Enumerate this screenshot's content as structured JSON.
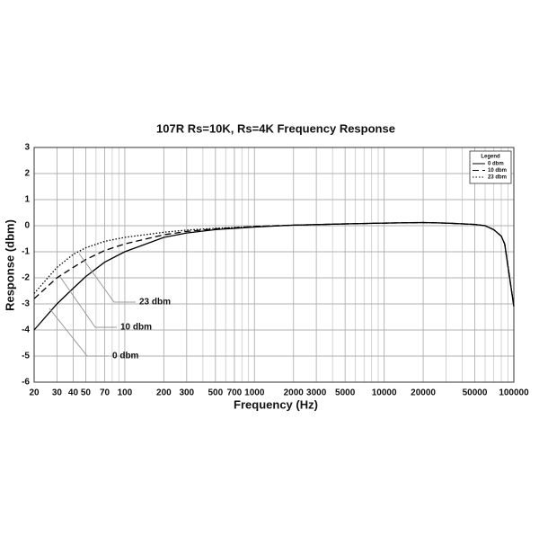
{
  "chart_data": {
    "type": "line",
    "title": "107R  Rs=10K, Rs=4K Frequency Response",
    "x_label": "Frequency (Hz)",
    "y_label": "Response (dbm)",
    "x_scale": "log",
    "x": [
      20,
      30,
      40,
      50,
      70,
      100,
      200,
      300,
      500,
      1000,
      2000,
      5000,
      10000,
      20000,
      30000,
      50000,
      60000,
      70000,
      80000,
      85000,
      100000
    ],
    "series": [
      {
        "name": "0 dbm",
        "color": "#000000",
        "style": "solid",
        "values": [
          -4.0,
          -3.0,
          -2.4,
          -1.95,
          -1.4,
          -1.0,
          -0.45,
          -0.28,
          -0.15,
          -0.05,
          0.02,
          0.07,
          0.1,
          0.12,
          0.1,
          0.05,
          0.0,
          -0.15,
          -0.4,
          -0.7,
          -3.1
        ]
      },
      {
        "name": "10 dbm",
        "color": "#000000",
        "style": "dashed",
        "values": [
          -2.8,
          -2.0,
          -1.6,
          -1.3,
          -0.95,
          -0.7,
          -0.35,
          -0.22,
          -0.12,
          -0.03,
          0.02,
          0.07,
          0.1,
          0.12,
          0.1,
          0.05,
          0.0,
          -0.15,
          -0.4,
          -0.7,
          -3.1
        ]
      },
      {
        "name": "23 dbm",
        "color": "#000000",
        "style": "dotted",
        "values": [
          -2.6,
          -1.6,
          -1.1,
          -0.85,
          -0.6,
          -0.45,
          -0.25,
          -0.17,
          -0.1,
          -0.03,
          0.02,
          0.07,
          0.1,
          0.12,
          0.1,
          0.05,
          0.0,
          -0.15,
          -0.4,
          -0.7,
          -3.1
        ]
      }
    ],
    "xlim": [
      20,
      100000
    ],
    "ylim": [
      -6,
      3
    ],
    "xticks": [
      20,
      30,
      40,
      50,
      70,
      100,
      200,
      300,
      500,
      700,
      1000,
      2000,
      3000,
      5000,
      10000,
      20000,
      50000,
      100000
    ],
    "x_minor_grid": [
      60,
      80,
      90,
      400,
      600,
      800,
      900,
      4000,
      6000,
      7000,
      8000,
      9000,
      30000,
      40000,
      60000,
      70000,
      80000,
      90000
    ],
    "yticks": [
      -6,
      -5,
      -4,
      -3,
      -2,
      -1,
      0,
      1,
      2,
      3
    ],
    "grid": true,
    "legend_title": "Legend",
    "legend_position": "upper right",
    "annotations": [
      "23 dbm",
      "10 dbm",
      "0 dbm"
    ]
  }
}
